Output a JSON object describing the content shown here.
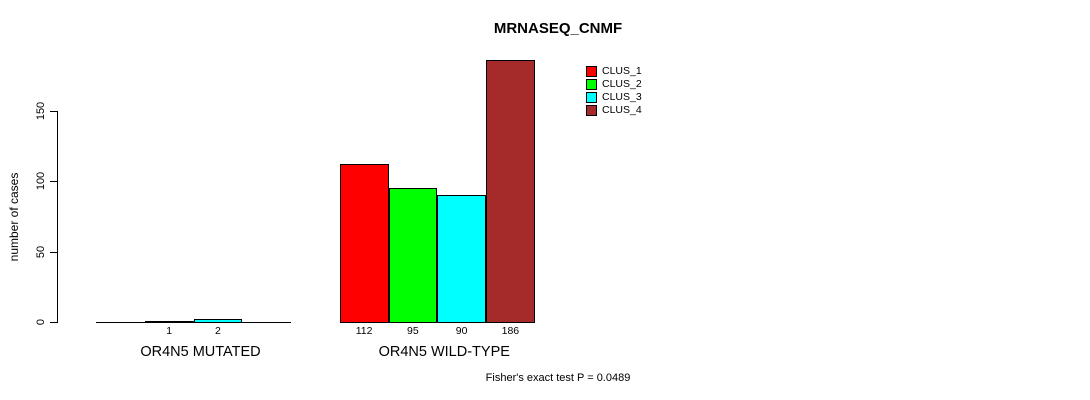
{
  "chart_data": {
    "type": "bar",
    "title": "MRNASEQ_CNMF",
    "ylabel": "number of cases",
    "xlabel": "",
    "y_ticks": [
      0,
      50,
      100,
      150
    ],
    "ylim": [
      0,
      186
    ],
    "grid": false,
    "legend_position": "top-right-inside",
    "categories": [
      "CLUS_1",
      "CLUS_2",
      "CLUS_3",
      "CLUS_4"
    ],
    "colors": [
      "#FF0000",
      "#00FF00",
      "#00FFFF",
      "#A52A2A"
    ],
    "groups": [
      {
        "label": "OR4N5 MUTATED",
        "values": [
          0,
          1,
          2,
          0
        ],
        "value_labels": [
          "",
          "1",
          "2",
          ""
        ]
      },
      {
        "label": "OR4N5 WILD-TYPE",
        "values": [
          112,
          95,
          90,
          186
        ],
        "value_labels": [
          "112",
          "95",
          "90",
          "186"
        ]
      }
    ],
    "annotation": "Fisher's exact test P = 0.0489"
  },
  "legend": {
    "items": [
      {
        "label": "CLUS_1",
        "color": "#FF0000"
      },
      {
        "label": "CLUS_2",
        "color": "#00FF00"
      },
      {
        "label": "CLUS_3",
        "color": "#00FFFF"
      },
      {
        "label": "CLUS_4",
        "color": "#A52A2A"
      }
    ]
  }
}
